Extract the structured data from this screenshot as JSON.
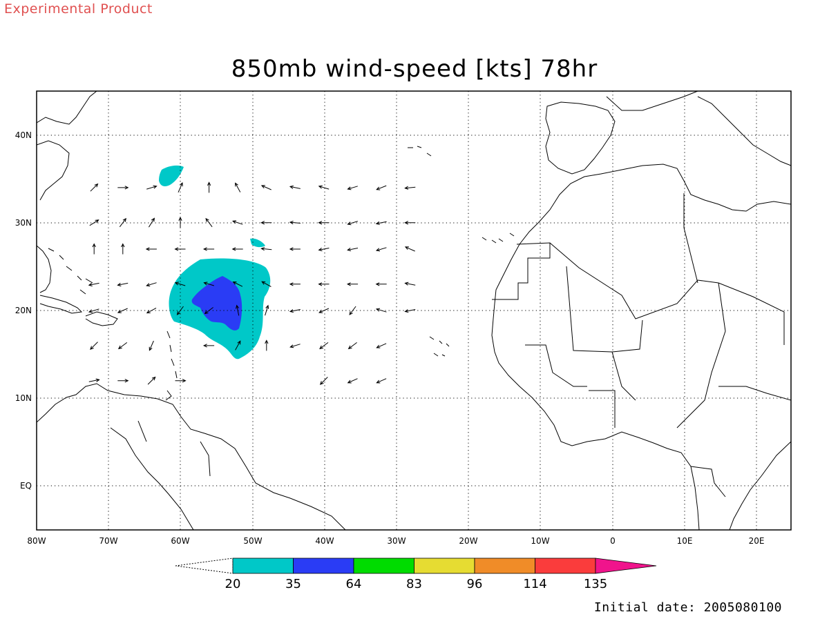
{
  "header": {
    "product_label": "Experimental Product",
    "title": "850mb wind-speed [kts] 78hr",
    "initial_date": "Initial date: 2005080100"
  },
  "map": {
    "lon_range": [
      -80,
      25
    ],
    "lat_range": [
      -5,
      45
    ],
    "lon_ticks": [
      "80W",
      "70W",
      "60W",
      "50W",
      "40W",
      "30W",
      "20W",
      "10W",
      "0",
      "10E",
      "20E"
    ],
    "lat_ticks": [
      "40N",
      "30N",
      "20N",
      "10N",
      "EQ"
    ],
    "grid": "dotted"
  },
  "colorbar": {
    "levels": [
      "20",
      "35",
      "64",
      "83",
      "96",
      "114",
      "135"
    ],
    "colors": [
      "#00c8c8",
      "#2a3cf5",
      "#00dc00",
      "#e6dc32",
      "#f08c28",
      "#fa3c3c",
      "#f0148c"
    ]
  },
  "chart_data": {
    "type": "heatmap",
    "title": "850mb wind-speed [kts] 78hr",
    "field": "850mb wind speed (kts)",
    "storm_center": {
      "lon": -53,
      "lat": 20
    },
    "wind_vectors": [
      {
        "lon": -72,
        "lat": 34,
        "dx": 0.7,
        "dy": 0.7
      },
      {
        "lon": -68,
        "lat": 34,
        "dx": 1,
        "dy": 0
      },
      {
        "lon": -64,
        "lat": 34,
        "dx": 1,
        "dy": 0.3
      },
      {
        "lon": -60,
        "lat": 34,
        "dx": 0.4,
        "dy": 0.9
      },
      {
        "lon": -56,
        "lat": 34,
        "dx": 0,
        "dy": 1
      },
      {
        "lon": -52,
        "lat": 34,
        "dx": -0.5,
        "dy": 0.9
      },
      {
        "lon": -48,
        "lat": 34,
        "dx": -0.9,
        "dy": 0.4
      },
      {
        "lon": -44,
        "lat": 34,
        "dx": -1,
        "dy": 0.2
      },
      {
        "lon": -40,
        "lat": 34,
        "dx": -1,
        "dy": 0.3
      },
      {
        "lon": -36,
        "lat": 34,
        "dx": -1,
        "dy": -0.3
      },
      {
        "lon": -32,
        "lat": 34,
        "dx": -1,
        "dy": -0.4
      },
      {
        "lon": -28,
        "lat": 34,
        "dx": -1,
        "dy": -0.1
      },
      {
        "lon": -72,
        "lat": 30,
        "dx": 0.8,
        "dy": 0.5
      },
      {
        "lon": -68,
        "lat": 30,
        "dx": 0.6,
        "dy": 0.8
      },
      {
        "lon": -64,
        "lat": 30,
        "dx": 0.5,
        "dy": 0.8
      },
      {
        "lon": -60,
        "lat": 30,
        "dx": 0,
        "dy": 1
      },
      {
        "lon": -56,
        "lat": 30,
        "dx": -0.6,
        "dy": 0.8
      },
      {
        "lon": -52,
        "lat": 30,
        "dx": -0.9,
        "dy": 0.3
      },
      {
        "lon": -48,
        "lat": 30,
        "dx": -1,
        "dy": 0
      },
      {
        "lon": -44,
        "lat": 30,
        "dx": -1,
        "dy": 0.1
      },
      {
        "lon": -40,
        "lat": 30,
        "dx": -1,
        "dy": 0
      },
      {
        "lon": -36,
        "lat": 30,
        "dx": -1,
        "dy": -0.3
      },
      {
        "lon": -32,
        "lat": 30,
        "dx": -1,
        "dy": -0.2
      },
      {
        "lon": -28,
        "lat": 30,
        "dx": -1,
        "dy": 0
      },
      {
        "lon": -72,
        "lat": 27,
        "dx": 0,
        "dy": 1
      },
      {
        "lon": -68,
        "lat": 27,
        "dx": 0,
        "dy": 1
      },
      {
        "lon": -64,
        "lat": 27,
        "dx": -1,
        "dy": 0
      },
      {
        "lon": -60,
        "lat": 27,
        "dx": -1,
        "dy": 0
      },
      {
        "lon": -56,
        "lat": 27,
        "dx": -1,
        "dy": 0
      },
      {
        "lon": -52,
        "lat": 27,
        "dx": -1,
        "dy": 0
      },
      {
        "lon": -48,
        "lat": 27,
        "dx": -1,
        "dy": 0.1
      },
      {
        "lon": -44,
        "lat": 27,
        "dx": -1,
        "dy": 0
      },
      {
        "lon": -40,
        "lat": 27,
        "dx": -1,
        "dy": -0.2
      },
      {
        "lon": -36,
        "lat": 27,
        "dx": -1,
        "dy": -0.2
      },
      {
        "lon": -32,
        "lat": 27,
        "dx": -1,
        "dy": -0.3
      },
      {
        "lon": -28,
        "lat": 27,
        "dx": -0.9,
        "dy": 0.4
      },
      {
        "lon": -72,
        "lat": 23,
        "dx": -1,
        "dy": -0.2
      },
      {
        "lon": -68,
        "lat": 23,
        "dx": -1,
        "dy": -0.2
      },
      {
        "lon": -64,
        "lat": 23,
        "dx": -1,
        "dy": -0.3
      },
      {
        "lon": -60,
        "lat": 23,
        "dx": -1,
        "dy": 0.3
      },
      {
        "lon": -56,
        "lat": 23,
        "dx": -1,
        "dy": 0.3
      },
      {
        "lon": -52,
        "lat": 23,
        "dx": -1,
        "dy": 0.5
      },
      {
        "lon": -48,
        "lat": 23,
        "dx": -0.9,
        "dy": 0.5
      },
      {
        "lon": -44,
        "lat": 23,
        "dx": -1,
        "dy": 0
      },
      {
        "lon": -40,
        "lat": 23,
        "dx": -1,
        "dy": 0
      },
      {
        "lon": -36,
        "lat": 23,
        "dx": -1,
        "dy": 0
      },
      {
        "lon": -32,
        "lat": 23,
        "dx": -1,
        "dy": 0
      },
      {
        "lon": -28,
        "lat": 23,
        "dx": -1,
        "dy": 0.2
      },
      {
        "lon": -72,
        "lat": 20,
        "dx": -1,
        "dy": -0.3
      },
      {
        "lon": -68,
        "lat": 20,
        "dx": -0.9,
        "dy": -0.4
      },
      {
        "lon": -64,
        "lat": 20,
        "dx": -0.9,
        "dy": -0.5
      },
      {
        "lon": -60,
        "lat": 20,
        "dx": -0.6,
        "dy": -0.8
      },
      {
        "lon": -56,
        "lat": 20,
        "dx": -0.8,
        "dy": -0.6
      },
      {
        "lon": -52,
        "lat": 20,
        "dx": -0.2,
        "dy": 1
      },
      {
        "lon": -48,
        "lat": 20,
        "dx": 0.3,
        "dy": 1
      },
      {
        "lon": -44,
        "lat": 20,
        "dx": -1,
        "dy": -0.2
      },
      {
        "lon": -40,
        "lat": 20,
        "dx": -0.9,
        "dy": -0.4
      },
      {
        "lon": -36,
        "lat": 20,
        "dx": -0.6,
        "dy": -0.8
      },
      {
        "lon": -32,
        "lat": 20,
        "dx": -1,
        "dy": 0.3
      },
      {
        "lon": -28,
        "lat": 20,
        "dx": -1,
        "dy": -0.2
      },
      {
        "lon": -72,
        "lat": 16,
        "dx": -0.7,
        "dy": -0.7
      },
      {
        "lon": -68,
        "lat": 16,
        "dx": -0.8,
        "dy": -0.6
      },
      {
        "lon": -64,
        "lat": 16,
        "dx": -0.4,
        "dy": -0.9
      },
      {
        "lon": -56,
        "lat": 16,
        "dx": -1,
        "dy": 0
      },
      {
        "lon": -52,
        "lat": 16,
        "dx": 0.5,
        "dy": 0.9
      },
      {
        "lon": -48,
        "lat": 16,
        "dx": 0,
        "dy": 1
      },
      {
        "lon": -44,
        "lat": 16,
        "dx": -1,
        "dy": -0.3
      },
      {
        "lon": -40,
        "lat": 16,
        "dx": -0.8,
        "dy": -0.6
      },
      {
        "lon": -36,
        "lat": 16,
        "dx": -0.8,
        "dy": -0.6
      },
      {
        "lon": -32,
        "lat": 16,
        "dx": -0.9,
        "dy": -0.4
      },
      {
        "lon": -72,
        "lat": 12,
        "dx": 1,
        "dy": 0.2
      },
      {
        "lon": -68,
        "lat": 12,
        "dx": 1,
        "dy": 0
      },
      {
        "lon": -64,
        "lat": 12,
        "dx": 0.7,
        "dy": 0.7
      },
      {
        "lon": -60,
        "lat": 12,
        "dx": 1,
        "dy": 0
      },
      {
        "lon": -40,
        "lat": 12,
        "dx": -0.7,
        "dy": -0.7
      },
      {
        "lon": -36,
        "lat": 12,
        "dx": -0.9,
        "dy": -0.4
      },
      {
        "lon": -32,
        "lat": 12,
        "dx": -0.9,
        "dy": -0.4
      }
    ]
  }
}
